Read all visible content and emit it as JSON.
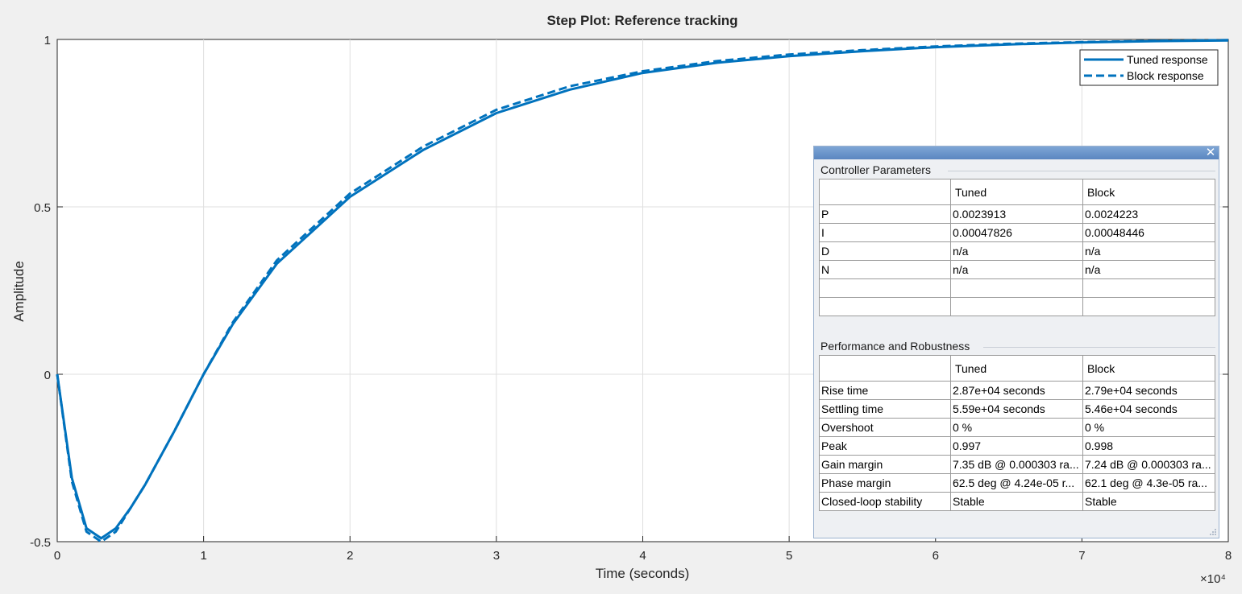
{
  "chart_data": {
    "type": "line",
    "title": "Step Plot: Reference tracking",
    "xlabel": "Time (seconds)",
    "ylabel": "Amplitude",
    "x_exponent_label": "×10⁴",
    "xlim": [
      0,
      8
    ],
    "ylim": [
      -0.5,
      1
    ],
    "x_ticks": [
      0,
      1,
      2,
      3,
      4,
      5,
      6,
      7,
      8
    ],
    "x_tick_labels": [
      "0",
      "1",
      "2",
      "3",
      "4",
      "5",
      "6",
      "7",
      "8"
    ],
    "y_ticks": [
      -0.5,
      0,
      0.5,
      1
    ],
    "y_tick_labels": [
      "-0.5",
      "0",
      "0.5",
      "1"
    ],
    "grid": true,
    "legend_position": "top-right",
    "series": [
      {
        "name": "Tuned response",
        "style": "solid",
        "color": "#0072bd",
        "x": [
          0,
          0.1,
          0.2,
          0.3,
          0.4,
          0.5,
          0.6,
          0.8,
          1.0,
          1.2,
          1.5,
          2.0,
          2.5,
          3.0,
          3.5,
          4.0,
          4.5,
          5.0,
          5.5,
          6.0,
          6.5,
          7.0,
          7.5,
          8.0
        ],
        "y": [
          0,
          -0.31,
          -0.46,
          -0.49,
          -0.46,
          -0.4,
          -0.33,
          -0.17,
          0.0,
          0.15,
          0.33,
          0.53,
          0.67,
          0.78,
          0.85,
          0.9,
          0.93,
          0.95,
          0.965,
          0.977,
          0.985,
          0.991,
          0.995,
          0.997
        ]
      },
      {
        "name": "Block response",
        "style": "dashed",
        "color": "#0072bd",
        "x": [
          0,
          0.1,
          0.2,
          0.3,
          0.4,
          0.5,
          0.6,
          0.8,
          1.0,
          1.2,
          1.5,
          2.0,
          2.5,
          3.0,
          3.5,
          4.0,
          4.5,
          5.0,
          5.5,
          6.0,
          6.5,
          7.0,
          7.5,
          8.0
        ],
        "y": [
          0,
          -0.32,
          -0.47,
          -0.5,
          -0.47,
          -0.4,
          -0.33,
          -0.17,
          0.0,
          0.155,
          0.34,
          0.54,
          0.68,
          0.79,
          0.86,
          0.905,
          0.935,
          0.955,
          0.968,
          0.979,
          0.987,
          0.992,
          0.996,
          0.998
        ]
      }
    ]
  },
  "panel": {
    "close_glyph": "✕",
    "controller": {
      "label": "Controller Parameters",
      "headers": [
        "",
        "Tuned",
        "Block"
      ],
      "rows": [
        [
          "P",
          "0.0023913",
          "0.0024223"
        ],
        [
          "I",
          "0.00047826",
          "0.00048446"
        ],
        [
          "D",
          "n/a",
          "n/a"
        ],
        [
          "N",
          "n/a",
          "n/a"
        ],
        [
          "",
          "",
          ""
        ],
        [
          "",
          "",
          ""
        ]
      ]
    },
    "performance": {
      "label": "Performance and Robustness",
      "headers": [
        "",
        "Tuned",
        "Block"
      ],
      "rows": [
        [
          "Rise time",
          "2.87e+04 seconds",
          "2.79e+04 seconds"
        ],
        [
          "Settling time",
          "5.59e+04 seconds",
          "5.46e+04 seconds"
        ],
        [
          "Overshoot",
          "0 %",
          "0 %"
        ],
        [
          "Peak",
          "0.997",
          "0.998"
        ],
        [
          "Gain margin",
          "7.35 dB @ 0.000303 ra...",
          "7.24 dB @ 0.000303 ra..."
        ],
        [
          "Phase margin",
          "62.5 deg @ 4.24e-05 r...",
          "62.1 deg @ 4.3e-05 ra..."
        ],
        [
          "Closed-loop stability",
          "Stable",
          "Stable"
        ]
      ]
    }
  }
}
